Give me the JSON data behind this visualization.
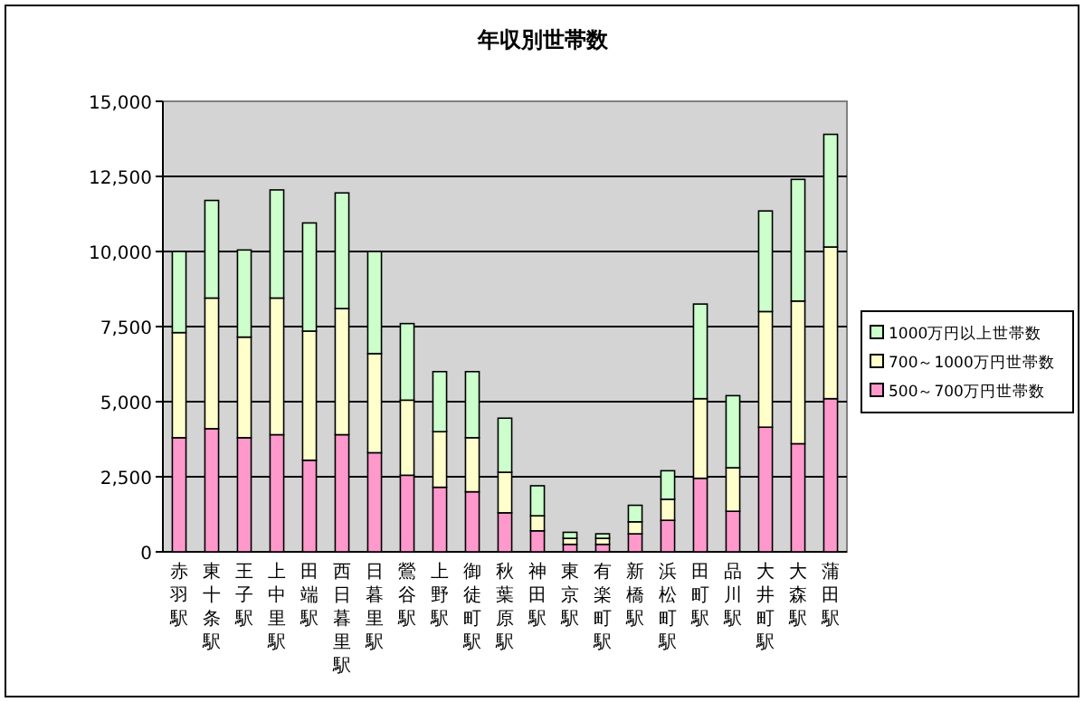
{
  "chart_data": {
    "type": "bar",
    "title": "年収別世帯数",
    "stacked": true,
    "grid": "y",
    "legend": "right",
    "categories": [
      "赤羽駅",
      "東十条駅",
      "王子駅",
      "上中里駅",
      "田端駅",
      "西日暮里駅",
      "日暮里駅",
      "鶯谷駅",
      "上野駅",
      "御徒町駅",
      "秋葉原駅",
      "神田駅",
      "東京駅",
      "有楽町駅",
      "新橋駅",
      "浜松町駅",
      "田町駅",
      "品川駅",
      "大井町駅",
      "大森駅",
      "蒲田駅"
    ],
    "series": [
      {
        "name": "500～700万円世帯数",
        "color": "#ff99cc",
        "values": [
          3800,
          4100,
          3800,
          3900,
          3050,
          3900,
          3300,
          2550,
          2150,
          2000,
          1300,
          700,
          250,
          250,
          600,
          1050,
          2450,
          1350,
          4150,
          3600,
          5100
        ]
      },
      {
        "name": "700～1000万円世帯数",
        "color": "#ffffcc",
        "values": [
          3500,
          4350,
          3350,
          4550,
          4300,
          4200,
          3300,
          2500,
          1850,
          1800,
          1350,
          500,
          200,
          200,
          400,
          700,
          2650,
          1450,
          3850,
          4750,
          5050
        ]
      },
      {
        "name": "1000万円以上世帯数",
        "color": "#ccffcc",
        "values": [
          2700,
          3250,
          2900,
          3600,
          3600,
          3850,
          3400,
          2550,
          2000,
          2200,
          1800,
          1000,
          200,
          150,
          550,
          950,
          3150,
          2400,
          3350,
          4050,
          3750
        ]
      }
    ],
    "ylim": [
      0,
      15000
    ],
    "yticks": [
      0,
      {
        "value": 2500,
        "label": "2,500"
      },
      {
        "value": 5000,
        "label": "5,000"
      },
      {
        "value": 7500,
        "label": "7,500"
      },
      {
        "value": 10000,
        "label": "10,000"
      },
      {
        "value": 12500,
        "label": "12,500"
      },
      {
        "value": 15000,
        "label": "15,000"
      }
    ]
  }
}
